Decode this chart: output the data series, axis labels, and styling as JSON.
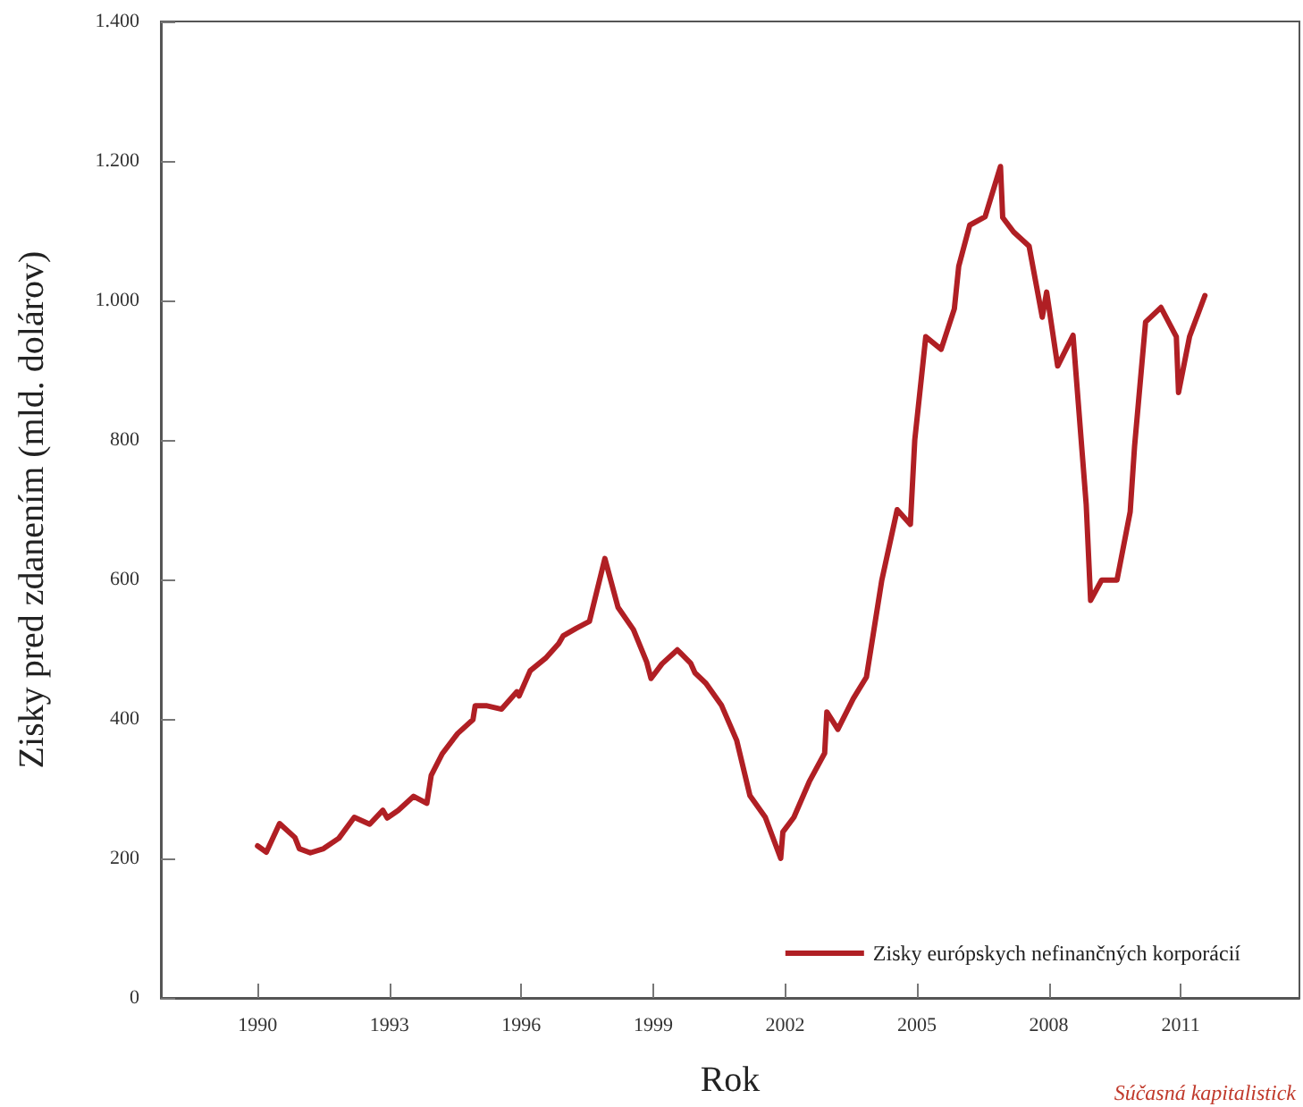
{
  "chart_data": {
    "type": "line",
    "xlabel": "Rok",
    "ylabel": "Zisky pred zdanením (mld. dolárov)",
    "annotations": [
      "Súčasná kapitalistick"
    ],
    "xlim": [
      1987.8,
      2013.7
    ],
    "xticks": [
      1990,
      1993,
      1996,
      1999,
      2002,
      2005,
      2008,
      2011
    ],
    "ylim": [
      0,
      1400
    ],
    "yticks": [
      0,
      200,
      400,
      600,
      800,
      {
        "value": 1000,
        "label": "1.000"
      },
      {
        "value": 1200,
        "label": "1.200"
      },
      {
        "value": 1400,
        "label": "1.400"
      }
    ],
    "grid": false,
    "legend": "bottom right",
    "marker": "none",
    "line_style": "solid",
    "series": [
      {
        "name": "Zisky európskych nefinančných korporácií",
        "color": "#b01f24",
        "x": [
          1990.0,
          1990.2,
          1990.5,
          1990.85,
          1990.95,
          1991.2,
          1991.5,
          1991.85,
          1992.2,
          1992.55,
          1992.85,
          1992.95,
          1993.2,
          1993.55,
          1993.85,
          1993.95,
          1994.2,
          1994.55,
          1994.9,
          1994.95,
          1995.2,
          1995.55,
          1995.9,
          1995.95,
          1996.2,
          1996.55,
          1996.85,
          1996.95,
          1997.25,
          1997.55,
          1997.9,
          1998.2,
          1998.55,
          1998.85,
          1998.95,
          1999.2,
          1999.55,
          1999.85,
          1999.95,
          2000.2,
          2000.55,
          2000.9,
          2001.2,
          2001.55,
          2001.9,
          2001.95,
          2002.2,
          2002.55,
          2002.9,
          2002.95,
          2003.2,
          2003.55,
          2003.85,
          2004.2,
          2004.55,
          2004.85,
          2004.95,
          2005.2,
          2005.55,
          2005.85,
          2005.95,
          2006.2,
          2006.55,
          2006.9,
          2006.95,
          2007.2,
          2007.55,
          2007.85,
          2007.95,
          2008.2,
          2008.55,
          2008.85,
          2008.95,
          2009.2,
          2009.55,
          2009.85,
          2009.95,
          2010.2,
          2010.55,
          2010.9,
          2010.95,
          2011.2,
          2011.55
        ],
        "values": [
          218,
          209,
          250,
          230,
          214,
          208,
          214,
          229,
          259,
          249,
          269,
          258,
          269,
          289,
          279,
          319,
          350,
          379,
          399,
          419,
          419,
          414,
          439,
          433,
          469,
          487,
          508,
          519,
          530,
          540,
          630,
          560,
          528,
          482,
          458,
          479,
          499,
          480,
          466,
          451,
          420,
          369,
          290,
          259,
          200,
          238,
          259,
          310,
          351,
          410,
          385,
          429,
          460,
          599,
          700,
          679,
          800,
          948,
          930,
          988,
          1049,
          1108,
          1120,
          1192,
          1119,
          1098,
          1078,
          976,
          1012,
          906,
          950,
          707,
          570,
          599,
          599,
          697,
          791,
          969,
          990,
          948,
          868,
          948,
          1007
        ]
      }
    ]
  }
}
